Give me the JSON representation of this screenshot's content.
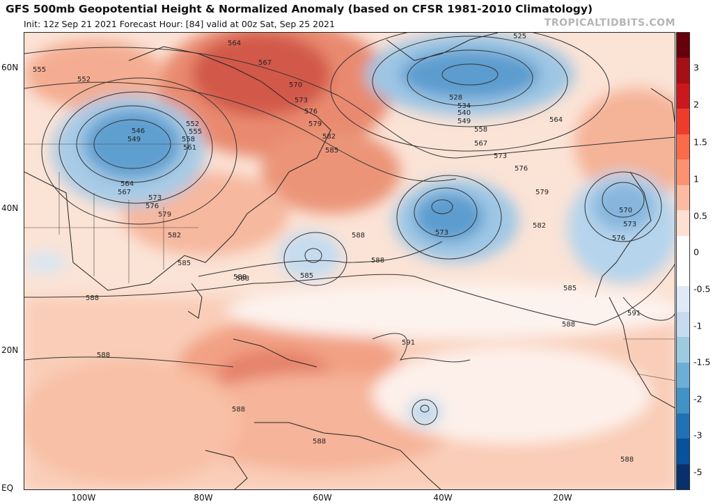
{
  "header": {
    "title": "GFS 500mb Geopotential Height & Normalized Anomaly (based on CFSR 1981-2010 Climatology)",
    "subtitle": "Init: 12z Sep 21 2021   Forecast Hour: [84]   valid at 00z Sat, Sep 25 2021",
    "brand": "TROPICALTIDBITS.COM"
  },
  "axes": {
    "lat_labels": [
      "60N",
      "40N",
      "20N",
      "EQ"
    ],
    "lon_labels": [
      "100W",
      "80W",
      "60W",
      "40W",
      "20W"
    ]
  },
  "colorbar": {
    "labels": [
      "3",
      "2",
      "1.5",
      "1",
      "0.5",
      "0",
      "-0.5",
      "-1",
      "-1.5",
      "-2",
      "-3",
      "-5"
    ],
    "colors": [
      "#67000d",
      "#a50f15",
      "#cb181d",
      "#ef3b2c",
      "#fb6a4a",
      "#fc9272",
      "#fcbba1",
      "#fee0d2",
      "#ffffff",
      "#ffffff",
      "#deebf7",
      "#c6dbef",
      "#9ecae1",
      "#6baed6",
      "#4292c6",
      "#2171b5",
      "#08519c",
      "#08306b"
    ]
  },
  "contour_labels": [
    "564",
    "567",
    "570",
    "573",
    "576",
    "579",
    "582",
    "585",
    "588",
    "555",
    "552",
    "546",
    "549",
    "552",
    "555",
    "558",
    "561",
    "564",
    "567",
    "573",
    "576",
    "579",
    "582",
    "585",
    "588",
    "525",
    "528",
    "534",
    "540",
    "549",
    "558",
    "564",
    "567",
    "573",
    "576",
    "579",
    "582",
    "588",
    "573",
    "585",
    "588",
    "591",
    "588",
    "588",
    "585",
    "588",
    "591",
    "570",
    "573",
    "576",
    "588",
    "588",
    "588"
  ]
}
